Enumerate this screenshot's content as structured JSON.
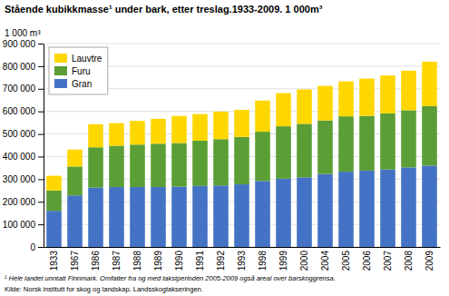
{
  "chart_data": {
    "type": "bar",
    "stacked": true,
    "title": "Stående kubikkmasse¹ under bark, etter treslag.1933-2009. 1 000m³",
    "y_label": "1 000 m³",
    "annotations": [
      "¹ Hele landet unntatt Finnmark. Omfatter fra og med takstperioden 2005-2009 også areal over barskoggrensa.",
      "Kilde: Norsk institutt for skog og landskap. Landsskogtakseringen."
    ],
    "categories": [
      "1933",
      "1967",
      "1986",
      "1987",
      "1988",
      "1989",
      "1990",
      "1991",
      "1992",
      "1993",
      "1998",
      "1999",
      "2000",
      "2004",
      "2005",
      "2006",
      "2007",
      "2008",
      "2009"
    ],
    "series": [
      {
        "name": "Gran",
        "color": "#4472C4",
        "values": [
          160000,
          228000,
          263000,
          265000,
          265000,
          265000,
          267000,
          270000,
          272000,
          277000,
          292000,
          302000,
          308000,
          323000,
          333000,
          338000,
          343000,
          352000,
          360000
        ]
      },
      {
        "name": "Furu",
        "color": "#5B9E35",
        "values": [
          90000,
          128000,
          178000,
          183000,
          188000,
          192000,
          193000,
          200000,
          205000,
          210000,
          218000,
          232000,
          237000,
          237000,
          245000,
          242000,
          248000,
          253000,
          263000
        ]
      },
      {
        "name": "Lauvtre",
        "color": "#FFD700",
        "values": [
          65000,
          75000,
          102000,
          100000,
          105000,
          110000,
          120000,
          118000,
          122000,
          120000,
          138000,
          147000,
          152000,
          153000,
          155000,
          165000,
          168000,
          175000,
          197000
        ]
      }
    ],
    "ylim": [
      0,
      900000
    ],
    "yticks": [
      0,
      {
        "value": 100000,
        "label": "100 000"
      },
      {
        "value": 200000,
        "label": "200 000"
      },
      {
        "value": 300000,
        "label": "300 000"
      },
      {
        "value": 400000,
        "label": "400 000"
      },
      {
        "value": 500000,
        "label": "500 000"
      },
      {
        "value": 600000,
        "label": "600 000"
      },
      {
        "value": 700000,
        "label": "700 000"
      },
      {
        "value": 800000,
        "label": "800 000"
      },
      {
        "value": 900000,
        "label": "900 000"
      }
    ],
    "grid": true,
    "legend": "upper left"
  }
}
